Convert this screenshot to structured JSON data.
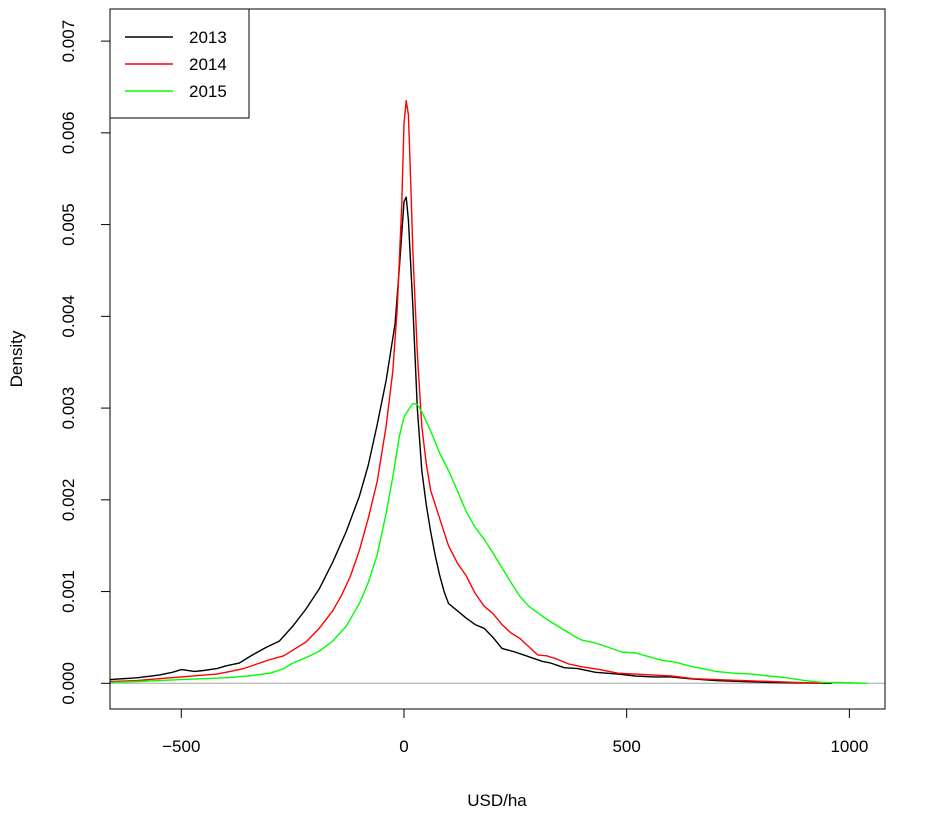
{
  "chart_data": {
    "type": "line",
    "title": "",
    "xlabel": "USD/ha",
    "ylabel": "Density",
    "xlim": [
      -660,
      1080
    ],
    "ylim": [
      -0.00028,
      0.00735
    ],
    "x_ticks": [
      -500,
      0,
      500,
      1000
    ],
    "x_tick_labels": [
      "−500",
      "0",
      "500",
      "1000"
    ],
    "y_ticks": [
      0.0,
      0.001,
      0.002,
      0.003,
      0.004,
      0.005,
      0.006,
      0.007
    ],
    "y_tick_labels": [
      "0.000",
      "0.001",
      "0.002",
      "0.003",
      "0.004",
      "0.005",
      "0.006",
      "0.007"
    ],
    "baseline": 0,
    "grid": false,
    "legend_position": "top-left",
    "series": [
      {
        "name": "2013",
        "color": "#000000",
        "points": [
          [
            -660,
            4e-05
          ],
          [
            -600,
            6e-05
          ],
          [
            -550,
            9e-05
          ],
          [
            -520,
            0.00012
          ],
          [
            -500,
            0.00015
          ],
          [
            -470,
            0.00013
          ],
          [
            -450,
            0.00014
          ],
          [
            -420,
            0.00016
          ],
          [
            -400,
            0.00019
          ],
          [
            -370,
            0.00022
          ],
          [
            -340,
            0.00031
          ],
          [
            -310,
            0.00039
          ],
          [
            -280,
            0.00046
          ],
          [
            -250,
            0.00062
          ],
          [
            -220,
            0.00081
          ],
          [
            -190,
            0.00103
          ],
          [
            -160,
            0.00132
          ],
          [
            -130,
            0.00165
          ],
          [
            -100,
            0.00204
          ],
          [
            -80,
            0.00238
          ],
          [
            -60,
            0.00282
          ],
          [
            -40,
            0.0033
          ],
          [
            -20,
            0.00392
          ],
          [
            -10,
            0.00455
          ],
          [
            0,
            0.00525
          ],
          [
            5,
            0.0053
          ],
          [
            10,
            0.00505
          ],
          [
            20,
            0.0041
          ],
          [
            30,
            0.003
          ],
          [
            40,
            0.00232
          ],
          [
            50,
            0.00195
          ],
          [
            60,
            0.00165
          ],
          [
            70,
            0.0014
          ],
          [
            80,
            0.00118
          ],
          [
            90,
            0.001
          ],
          [
            100,
            0.00087
          ],
          [
            120,
            0.00079
          ],
          [
            140,
            0.00071
          ],
          [
            160,
            0.00064
          ],
          [
            180,
            0.0006
          ],
          [
            200,
            0.0005
          ],
          [
            220,
            0.00038
          ],
          [
            250,
            0.00034
          ],
          [
            280,
            0.00029
          ],
          [
            310,
            0.00024
          ],
          [
            330,
            0.00022
          ],
          [
            360,
            0.00017
          ],
          [
            390,
            0.00016
          ],
          [
            430,
            0.00012
          ],
          [
            480,
            0.0001
          ],
          [
            520,
            8e-05
          ],
          [
            560,
            7e-05
          ],
          [
            600,
            7e-05
          ],
          [
            640,
            5e-05
          ],
          [
            700,
            3e-05
          ],
          [
            760,
            2e-05
          ],
          [
            820,
            1e-05
          ],
          [
            900,
            5e-06
          ],
          [
            960,
            0.0
          ]
        ]
      },
      {
        "name": "2014",
        "color": "#ff0000",
        "points": [
          [
            -660,
            2e-05
          ],
          [
            -600,
            3e-05
          ],
          [
            -550,
            5e-05
          ],
          [
            -500,
            7e-05
          ],
          [
            -450,
            9e-05
          ],
          [
            -420,
            0.0001
          ],
          [
            -390,
            0.00013
          ],
          [
            -360,
            0.00016
          ],
          [
            -330,
            0.00021
          ],
          [
            -300,
            0.00026
          ],
          [
            -270,
            0.0003
          ],
          [
            -250,
            0.00036
          ],
          [
            -220,
            0.00045
          ],
          [
            -190,
            0.0006
          ],
          [
            -160,
            0.00079
          ],
          [
            -140,
            0.00096
          ],
          [
            -120,
            0.00117
          ],
          [
            -100,
            0.00145
          ],
          [
            -80,
            0.0018
          ],
          [
            -60,
            0.0022
          ],
          [
            -40,
            0.0028
          ],
          [
            -25,
            0.0034
          ],
          [
            -15,
            0.0041
          ],
          [
            -5,
            0.0052
          ],
          [
            0,
            0.0061
          ],
          [
            5,
            0.00635
          ],
          [
            10,
            0.0062
          ],
          [
            15,
            0.0055
          ],
          [
            20,
            0.0047
          ],
          [
            30,
            0.0036
          ],
          [
            40,
            0.0028
          ],
          [
            50,
            0.0024
          ],
          [
            60,
            0.0021
          ],
          [
            80,
            0.0018
          ],
          [
            100,
            0.0015
          ],
          [
            120,
            0.00131
          ],
          [
            140,
            0.00117
          ],
          [
            160,
            0.00098
          ],
          [
            180,
            0.00084
          ],
          [
            200,
            0.00076
          ],
          [
            220,
            0.00064
          ],
          [
            240,
            0.00055
          ],
          [
            260,
            0.00049
          ],
          [
            280,
            0.0004
          ],
          [
            300,
            0.00031
          ],
          [
            320,
            0.0003
          ],
          [
            340,
            0.00027
          ],
          [
            370,
            0.00021
          ],
          [
            400,
            0.00018
          ],
          [
            440,
            0.00015
          ],
          [
            480,
            0.00011
          ],
          [
            520,
            0.0001
          ],
          [
            560,
            9e-05
          ],
          [
            600,
            8e-05
          ],
          [
            650,
            5e-05
          ],
          [
            700,
            4e-05
          ],
          [
            760,
            3e-05
          ],
          [
            820,
            2e-05
          ],
          [
            880,
            1e-05
          ],
          [
            940,
            0.0
          ]
        ]
      },
      {
        "name": "2015",
        "color": "#00ff00",
        "points": [
          [
            -660,
            1e-05
          ],
          [
            -600,
            2e-05
          ],
          [
            -550,
            3e-05
          ],
          [
            -500,
            4e-05
          ],
          [
            -450,
            5e-05
          ],
          [
            -400,
            6e-05
          ],
          [
            -350,
            8e-05
          ],
          [
            -300,
            0.00011
          ],
          [
            -270,
            0.00016
          ],
          [
            -250,
            0.00022
          ],
          [
            -220,
            0.00028
          ],
          [
            -190,
            0.00035
          ],
          [
            -160,
            0.00046
          ],
          [
            -130,
            0.00062
          ],
          [
            -100,
            0.00087
          ],
          [
            -80,
            0.0011
          ],
          [
            -60,
            0.0014
          ],
          [
            -40,
            0.00185
          ],
          [
            -25,
            0.00225
          ],
          [
            -10,
            0.0027
          ],
          [
            0,
            0.0029
          ],
          [
            10,
            0.00298
          ],
          [
            20,
            0.00305
          ],
          [
            30,
            0.00304
          ],
          [
            40,
            0.00296
          ],
          [
            60,
            0.00275
          ],
          [
            80,
            0.00251
          ],
          [
            100,
            0.00232
          ],
          [
            120,
            0.0021
          ],
          [
            140,
            0.00187
          ],
          [
            160,
            0.0017
          ],
          [
            180,
            0.00157
          ],
          [
            200,
            0.00142
          ],
          [
            220,
            0.00126
          ],
          [
            240,
            0.0011
          ],
          [
            260,
            0.00095
          ],
          [
            280,
            0.00084
          ],
          [
            300,
            0.00077
          ],
          [
            320,
            0.0007
          ],
          [
            340,
            0.00064
          ],
          [
            360,
            0.00058
          ],
          [
            380,
            0.00052
          ],
          [
            400,
            0.00047
          ],
          [
            430,
            0.00044
          ],
          [
            460,
            0.00039
          ],
          [
            490,
            0.00034
          ],
          [
            520,
            0.00033
          ],
          [
            550,
            0.00029
          ],
          [
            580,
            0.00025
          ],
          [
            610,
            0.00023
          ],
          [
            640,
            0.00019
          ],
          [
            670,
            0.00016
          ],
          [
            700,
            0.00013
          ],
          [
            740,
            0.00011
          ],
          [
            780,
            0.0001
          ],
          [
            820,
            8e-05
          ],
          [
            860,
            6e-05
          ],
          [
            900,
            3e-05
          ],
          [
            940,
            1e-05
          ],
          [
            980,
            1e-05
          ],
          [
            1040,
            0.0
          ]
        ]
      }
    ]
  }
}
